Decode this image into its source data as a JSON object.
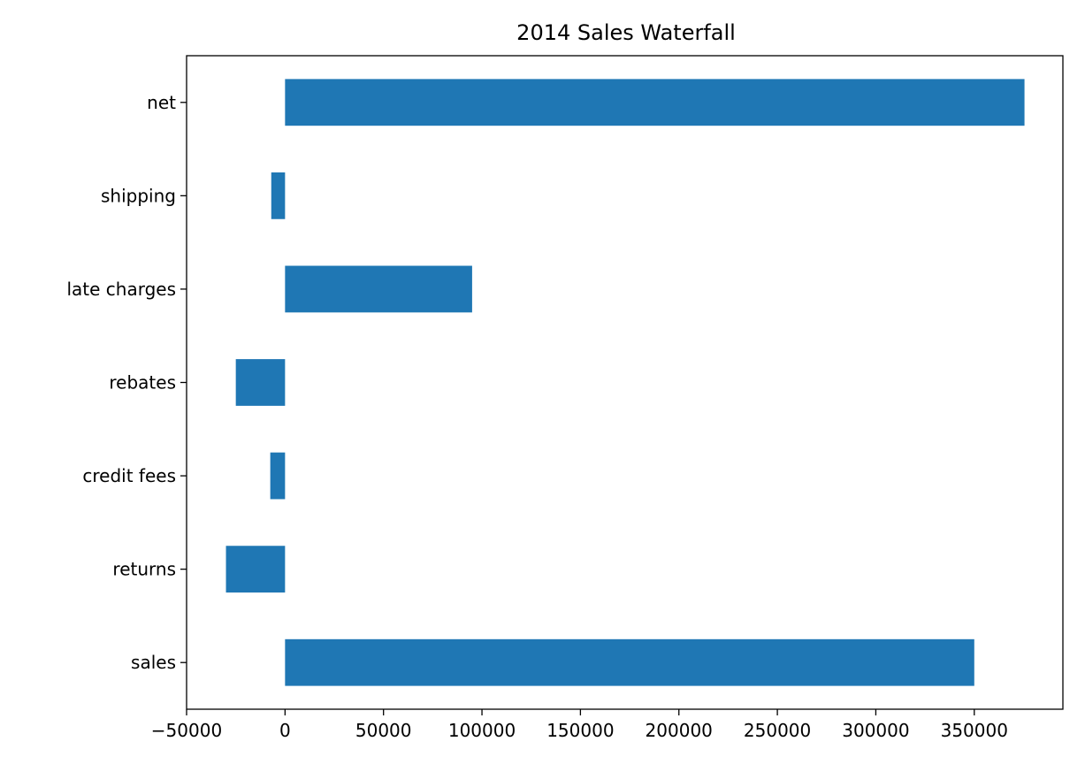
{
  "chart_data": {
    "type": "bar",
    "orientation": "horizontal",
    "title": "2014 Sales Waterfall",
    "xlabel": "",
    "ylabel": "",
    "categories": [
      "sales",
      "returns",
      "credit fees",
      "rebates",
      "late charges",
      "shipping",
      "net"
    ],
    "values": [
      350000,
      -30000,
      -7500,
      -25000,
      95000,
      -7000,
      375500
    ],
    "xlim": [
      -50000,
      395000
    ],
    "xticks": [
      -50000,
      0,
      50000,
      100000,
      150000,
      200000,
      250000,
      300000,
      350000
    ],
    "xtick_labels": [
      "−50000",
      "0",
      "50000",
      "100000",
      "150000",
      "200000",
      "250000",
      "300000",
      "350000"
    ],
    "grid": false,
    "legend": false,
    "bar_color": "#1f77b4"
  }
}
